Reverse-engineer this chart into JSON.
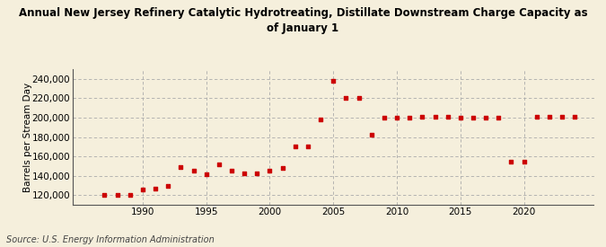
{
  "title_line1": "Annual New Jersey Refinery Catalytic Hydrotreating, Distillate Downstream Charge Capacity as",
  "title_line2": "of January 1",
  "ylabel": "Barrels per Stream Day",
  "source": "Source: U.S. Energy Information Administration",
  "years": [
    1987,
    1988,
    1989,
    1990,
    1991,
    1992,
    1993,
    1994,
    1995,
    1996,
    1997,
    1998,
    1999,
    2000,
    2001,
    2002,
    2003,
    2004,
    2005,
    2006,
    2007,
    2008,
    2009,
    2010,
    2011,
    2012,
    2013,
    2014,
    2015,
    2016,
    2017,
    2018,
    2019,
    2020,
    2021,
    2022,
    2023,
    2024
  ],
  "values": [
    120000,
    120000,
    120000,
    126000,
    127000,
    130000,
    149000,
    145000,
    142000,
    152000,
    145000,
    143000,
    143000,
    145000,
    148000,
    170000,
    170000,
    198000,
    238000,
    220000,
    220000,
    182000,
    200000,
    200000,
    200000,
    201000,
    201000,
    201000,
    200000,
    200000,
    200000,
    200000,
    155000,
    155000,
    201000,
    201000,
    201000,
    201000
  ],
  "dot_color": "#cc0000",
  "bg_color": "#f5efdc",
  "plot_bg_color": "#f5efdc",
  "ylim": [
    110000,
    250000
  ],
  "yticks": [
    120000,
    140000,
    160000,
    180000,
    200000,
    220000,
    240000
  ],
  "xticks": [
    1990,
    1995,
    2000,
    2005,
    2010,
    2015,
    2020
  ],
  "xlim": [
    1984.5,
    2025.5
  ],
  "grid_color": "#aaaaaa",
  "title_fontsize": 8.5,
  "ylabel_fontsize": 7.5,
  "tick_fontsize": 7.5,
  "source_fontsize": 7.0
}
